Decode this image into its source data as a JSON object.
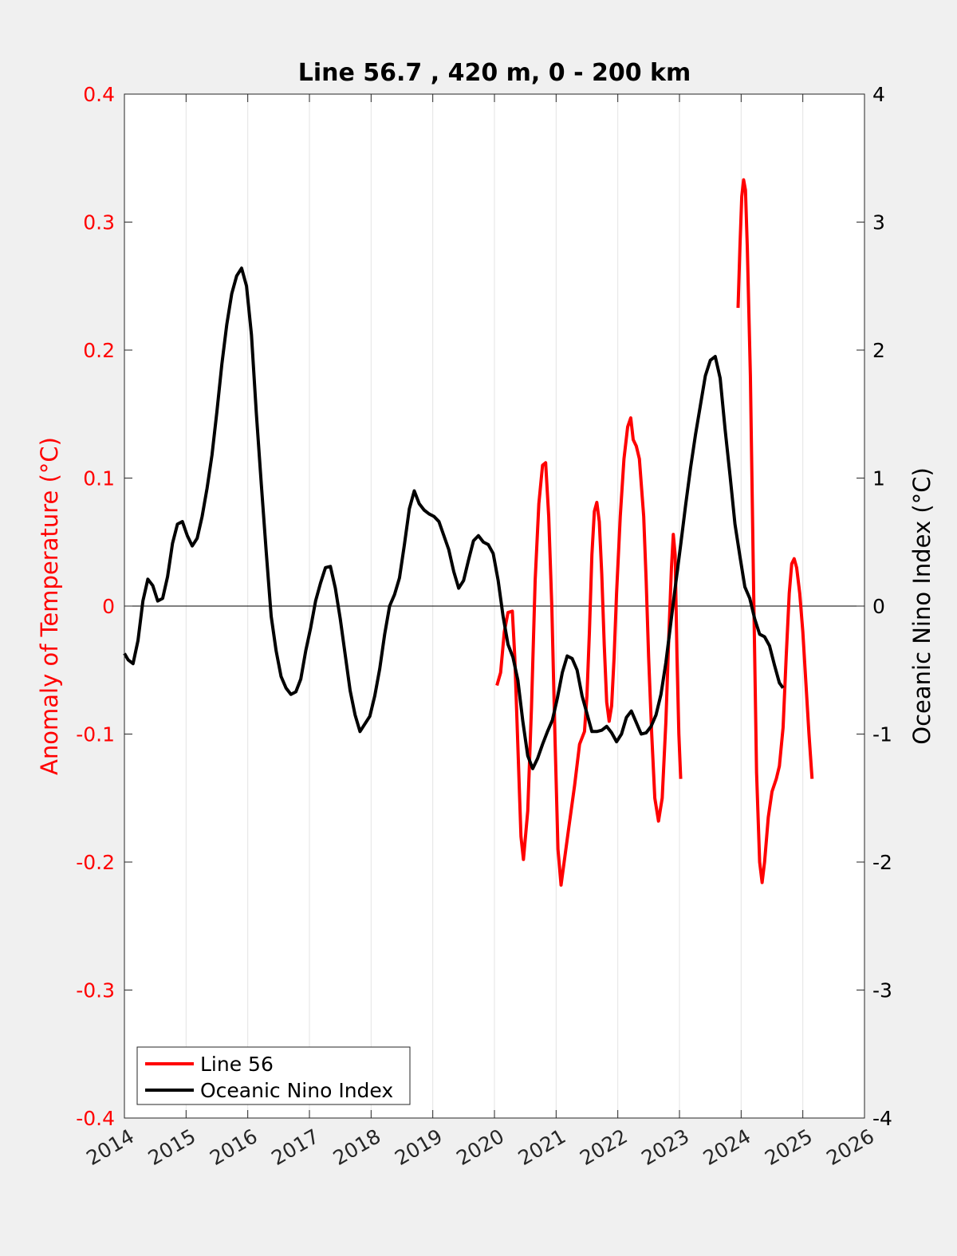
{
  "chart_data": {
    "type": "line",
    "title": "Line 56.7 , 420 m, 0 - 200 km",
    "xlabel": "",
    "ylabel_left": "Anomaly of Temperature (°C)",
    "ylabel_right": "Oceanic Nino Index (°C)",
    "xlim": [
      2014,
      2026
    ],
    "ylim_left": [
      -0.4,
      0.4
    ],
    "ylim_right": [
      -4,
      4
    ],
    "x_ticks": [
      "2014",
      "2015",
      "2016",
      "2017",
      "2018",
      "2019",
      "2020",
      "2021",
      "2022",
      "2023",
      "2024",
      "2025",
      "2026"
    ],
    "y_left_ticks": [
      "0.4",
      "0.3",
      "0.2",
      "0.1",
      "0",
      "-0.1",
      "-0.2",
      "-0.3",
      "-0.4"
    ],
    "y_right_ticks": [
      "4",
      "3",
      "2",
      "1",
      "0",
      "-1",
      "-2",
      "-3",
      "-4"
    ],
    "grid": "vertical",
    "zero_line": true,
    "legend_position": "bottom-left",
    "legend": [
      "Line 56",
      "Oceanic Nino Index"
    ],
    "colors": {
      "line56": "#ff0000",
      "oni": "#000000"
    },
    "series": [
      {
        "name": "Line 56",
        "axis": "left",
        "segments": [
          [
            [
              2020.04,
              -0.062
            ],
            [
              2020.1,
              -0.052
            ],
            [
              2020.16,
              -0.02
            ],
            [
              2020.22,
              -0.005
            ],
            [
              2020.29,
              -0.004
            ],
            [
              2020.33,
              -0.04
            ],
            [
              2020.38,
              -0.11
            ],
            [
              2020.43,
              -0.18
            ],
            [
              2020.47,
              -0.198
            ],
            [
              2020.54,
              -0.16
            ],
            [
              2020.6,
              -0.08
            ],
            [
              2020.66,
              0.02
            ],
            [
              2020.72,
              0.08
            ],
            [
              2020.78,
              0.11
            ],
            [
              2020.83,
              0.112
            ],
            [
              2020.88,
              0.07
            ],
            [
              2020.93,
              0.0
            ],
            [
              2020.98,
              -0.1
            ],
            [
              2021.03,
              -0.19
            ],
            [
              2021.08,
              -0.218
            ],
            [
              2021.13,
              -0.2
            ],
            [
              2021.2,
              -0.175
            ],
            [
              2021.3,
              -0.14
            ],
            [
              2021.38,
              -0.108
            ],
            [
              2021.46,
              -0.098
            ],
            [
              2021.5,
              -0.07
            ],
            [
              2021.54,
              -0.02
            ],
            [
              2021.58,
              0.04
            ],
            [
              2021.62,
              0.074
            ],
            [
              2021.66,
              0.081
            ],
            [
              2021.7,
              0.066
            ],
            [
              2021.74,
              0.025
            ],
            [
              2021.78,
              -0.03
            ],
            [
              2021.82,
              -0.075
            ],
            [
              2021.86,
              -0.09
            ],
            [
              2021.9,
              -0.078
            ],
            [
              2021.94,
              -0.04
            ],
            [
              2021.98,
              0.01
            ],
            [
              2022.04,
              0.07
            ],
            [
              2022.1,
              0.115
            ],
            [
              2022.16,
              0.14
            ],
            [
              2022.21,
              0.147
            ],
            [
              2022.25,
              0.13
            ],
            [
              2022.3,
              0.125
            ],
            [
              2022.35,
              0.115
            ],
            [
              2022.42,
              0.07
            ],
            [
              2022.46,
              0.02
            ],
            [
              2022.5,
              -0.04
            ],
            [
              2022.55,
              -0.1
            ],
            [
              2022.6,
              -0.15
            ],
            [
              2022.66,
              -0.168
            ],
            [
              2022.72,
              -0.15
            ],
            [
              2022.78,
              -0.09
            ],
            [
              2022.83,
              -0.02
            ],
            [
              2022.87,
              0.03
            ],
            [
              2022.9,
              0.056
            ],
            [
              2022.93,
              0.04
            ],
            [
              2022.96,
              -0.04
            ],
            [
              2022.99,
              -0.1
            ],
            [
              2023.02,
              -0.135
            ]
          ],
          [
            [
              2023.95,
              0.233
            ],
            [
              2023.98,
              0.28
            ],
            [
              2024.01,
              0.32
            ],
            [
              2024.04,
              0.333
            ],
            [
              2024.07,
              0.325
            ],
            [
              2024.1,
              0.28
            ],
            [
              2024.15,
              0.18
            ],
            [
              2024.2,
              0.02
            ],
            [
              2024.25,
              -0.13
            ],
            [
              2024.3,
              -0.2
            ],
            [
              2024.34,
              -0.216
            ],
            [
              2024.38,
              -0.2
            ],
            [
              2024.44,
              -0.165
            ],
            [
              2024.5,
              -0.145
            ],
            [
              2024.57,
              -0.135
            ],
            [
              2024.62,
              -0.125
            ],
            [
              2024.68,
              -0.095
            ],
            [
              2024.73,
              -0.04
            ],
            [
              2024.78,
              0.01
            ],
            [
              2024.82,
              0.033
            ],
            [
              2024.86,
              0.037
            ],
            [
              2024.9,
              0.03
            ],
            [
              2024.95,
              0.01
            ],
            [
              2025.0,
              -0.02
            ],
            [
              2025.05,
              -0.06
            ],
            [
              2025.1,
              -0.1
            ],
            [
              2025.15,
              -0.135
            ]
          ]
        ]
      },
      {
        "name": "Oceanic Nino Index",
        "axis": "right",
        "segments": [
          [
            [
              2014.0,
              -0.37
            ],
            [
              2014.06,
              -0.42
            ],
            [
              2014.14,
              -0.45
            ],
            [
              2014.22,
              -0.27
            ],
            [
              2014.3,
              0.04
            ],
            [
              2014.38,
              0.21
            ],
            [
              2014.46,
              0.16
            ],
            [
              2014.54,
              0.04
            ],
            [
              2014.62,
              0.06
            ],
            [
              2014.7,
              0.23
            ],
            [
              2014.78,
              0.49
            ],
            [
              2014.86,
              0.64
            ],
            [
              2014.94,
              0.66
            ],
            [
              2015.02,
              0.55
            ],
            [
              2015.1,
              0.47
            ],
            [
              2015.18,
              0.53
            ],
            [
              2015.26,
              0.7
            ],
            [
              2015.34,
              0.92
            ],
            [
              2015.42,
              1.18
            ],
            [
              2015.5,
              1.52
            ],
            [
              2015.58,
              1.89
            ],
            [
              2015.66,
              2.2
            ],
            [
              2015.74,
              2.44
            ],
            [
              2015.82,
              2.58
            ],
            [
              2015.9,
              2.64
            ],
            [
              2015.98,
              2.5
            ],
            [
              2016.06,
              2.12
            ],
            [
              2016.14,
              1.5
            ],
            [
              2016.22,
              0.95
            ],
            [
              2016.3,
              0.42
            ],
            [
              2016.38,
              -0.08
            ],
            [
              2016.46,
              -0.35
            ],
            [
              2016.54,
              -0.55
            ],
            [
              2016.62,
              -0.64
            ],
            [
              2016.7,
              -0.69
            ],
            [
              2016.78,
              -0.67
            ],
            [
              2016.86,
              -0.57
            ],
            [
              2016.94,
              -0.35
            ],
            [
              2017.02,
              -0.17
            ],
            [
              2017.1,
              0.04
            ],
            [
              2017.18,
              0.18
            ],
            [
              2017.26,
              0.3
            ],
            [
              2017.34,
              0.31
            ],
            [
              2017.42,
              0.14
            ],
            [
              2017.5,
              -0.1
            ],
            [
              2017.58,
              -0.38
            ],
            [
              2017.66,
              -0.66
            ],
            [
              2017.74,
              -0.85
            ],
            [
              2017.82,
              -0.98
            ],
            [
              2017.9,
              -0.92
            ],
            [
              2017.98,
              -0.86
            ],
            [
              2018.06,
              -0.7
            ],
            [
              2018.14,
              -0.49
            ],
            [
              2018.22,
              -0.22
            ],
            [
              2018.3,
              0.0
            ],
            [
              2018.38,
              0.09
            ],
            [
              2018.46,
              0.22
            ],
            [
              2018.54,
              0.48
            ],
            [
              2018.62,
              0.76
            ],
            [
              2018.7,
              0.9
            ],
            [
              2018.78,
              0.8
            ],
            [
              2018.86,
              0.75
            ],
            [
              2018.94,
              0.72
            ],
            [
              2019.02,
              0.7
            ],
            [
              2019.1,
              0.66
            ],
            [
              2019.18,
              0.55
            ],
            [
              2019.26,
              0.44
            ],
            [
              2019.34,
              0.27
            ],
            [
              2019.42,
              0.14
            ],
            [
              2019.5,
              0.2
            ],
            [
              2019.58,
              0.36
            ],
            [
              2019.66,
              0.51
            ],
            [
              2019.74,
              0.55
            ],
            [
              2019.82,
              0.5
            ],
            [
              2019.9,
              0.48
            ],
            [
              2019.98,
              0.41
            ],
            [
              2020.06,
              0.2
            ],
            [
              2020.14,
              -0.08
            ],
            [
              2020.22,
              -0.3
            ],
            [
              2020.3,
              -0.4
            ],
            [
              2020.38,
              -0.58
            ],
            [
              2020.46,
              -0.9
            ],
            [
              2020.54,
              -1.17
            ],
            [
              2020.62,
              -1.27
            ],
            [
              2020.7,
              -1.19
            ],
            [
              2020.78,
              -1.08
            ],
            [
              2020.86,
              -0.98
            ],
            [
              2020.94,
              -0.89
            ],
            [
              2021.02,
              -0.72
            ],
            [
              2021.1,
              -0.52
            ],
            [
              2021.18,
              -0.39
            ],
            [
              2021.26,
              -0.41
            ],
            [
              2021.34,
              -0.5
            ],
            [
              2021.42,
              -0.7
            ],
            [
              2021.5,
              -0.84
            ],
            [
              2021.58,
              -0.98
            ],
            [
              2021.66,
              -0.98
            ],
            [
              2021.74,
              -0.97
            ],
            [
              2021.82,
              -0.94
            ],
            [
              2021.9,
              -0.99
            ],
            [
              2021.98,
              -1.06
            ],
            [
              2022.06,
              -1.0
            ],
            [
              2022.14,
              -0.87
            ],
            [
              2022.22,
              -0.82
            ],
            [
              2022.3,
              -0.91
            ],
            [
              2022.38,
              -1.0
            ],
            [
              2022.46,
              -0.99
            ],
            [
              2022.54,
              -0.94
            ],
            [
              2022.62,
              -0.85
            ],
            [
              2022.7,
              -0.69
            ],
            [
              2022.78,
              -0.44
            ],
            [
              2022.86,
              -0.13
            ],
            [
              2022.94,
              0.18
            ],
            [
              2023.02,
              0.48
            ],
            [
              2023.1,
              0.79
            ],
            [
              2023.18,
              1.08
            ],
            [
              2023.26,
              1.34
            ],
            [
              2023.34,
              1.57
            ],
            [
              2023.42,
              1.8
            ],
            [
              2023.5,
              1.92
            ],
            [
              2023.58,
              1.95
            ],
            [
              2023.66,
              1.78
            ],
            [
              2023.74,
              1.38
            ],
            [
              2023.82,
              1.02
            ],
            [
              2023.9,
              0.64
            ],
            [
              2023.98,
              0.39
            ],
            [
              2024.06,
              0.15
            ],
            [
              2024.14,
              0.06
            ],
            [
              2024.22,
              -0.1
            ],
            [
              2024.3,
              -0.22
            ],
            [
              2024.38,
              -0.24
            ],
            [
              2024.46,
              -0.31
            ],
            [
              2024.54,
              -0.46
            ],
            [
              2024.62,
              -0.6
            ],
            [
              2024.68,
              -0.64
            ]
          ]
        ]
      }
    ]
  }
}
